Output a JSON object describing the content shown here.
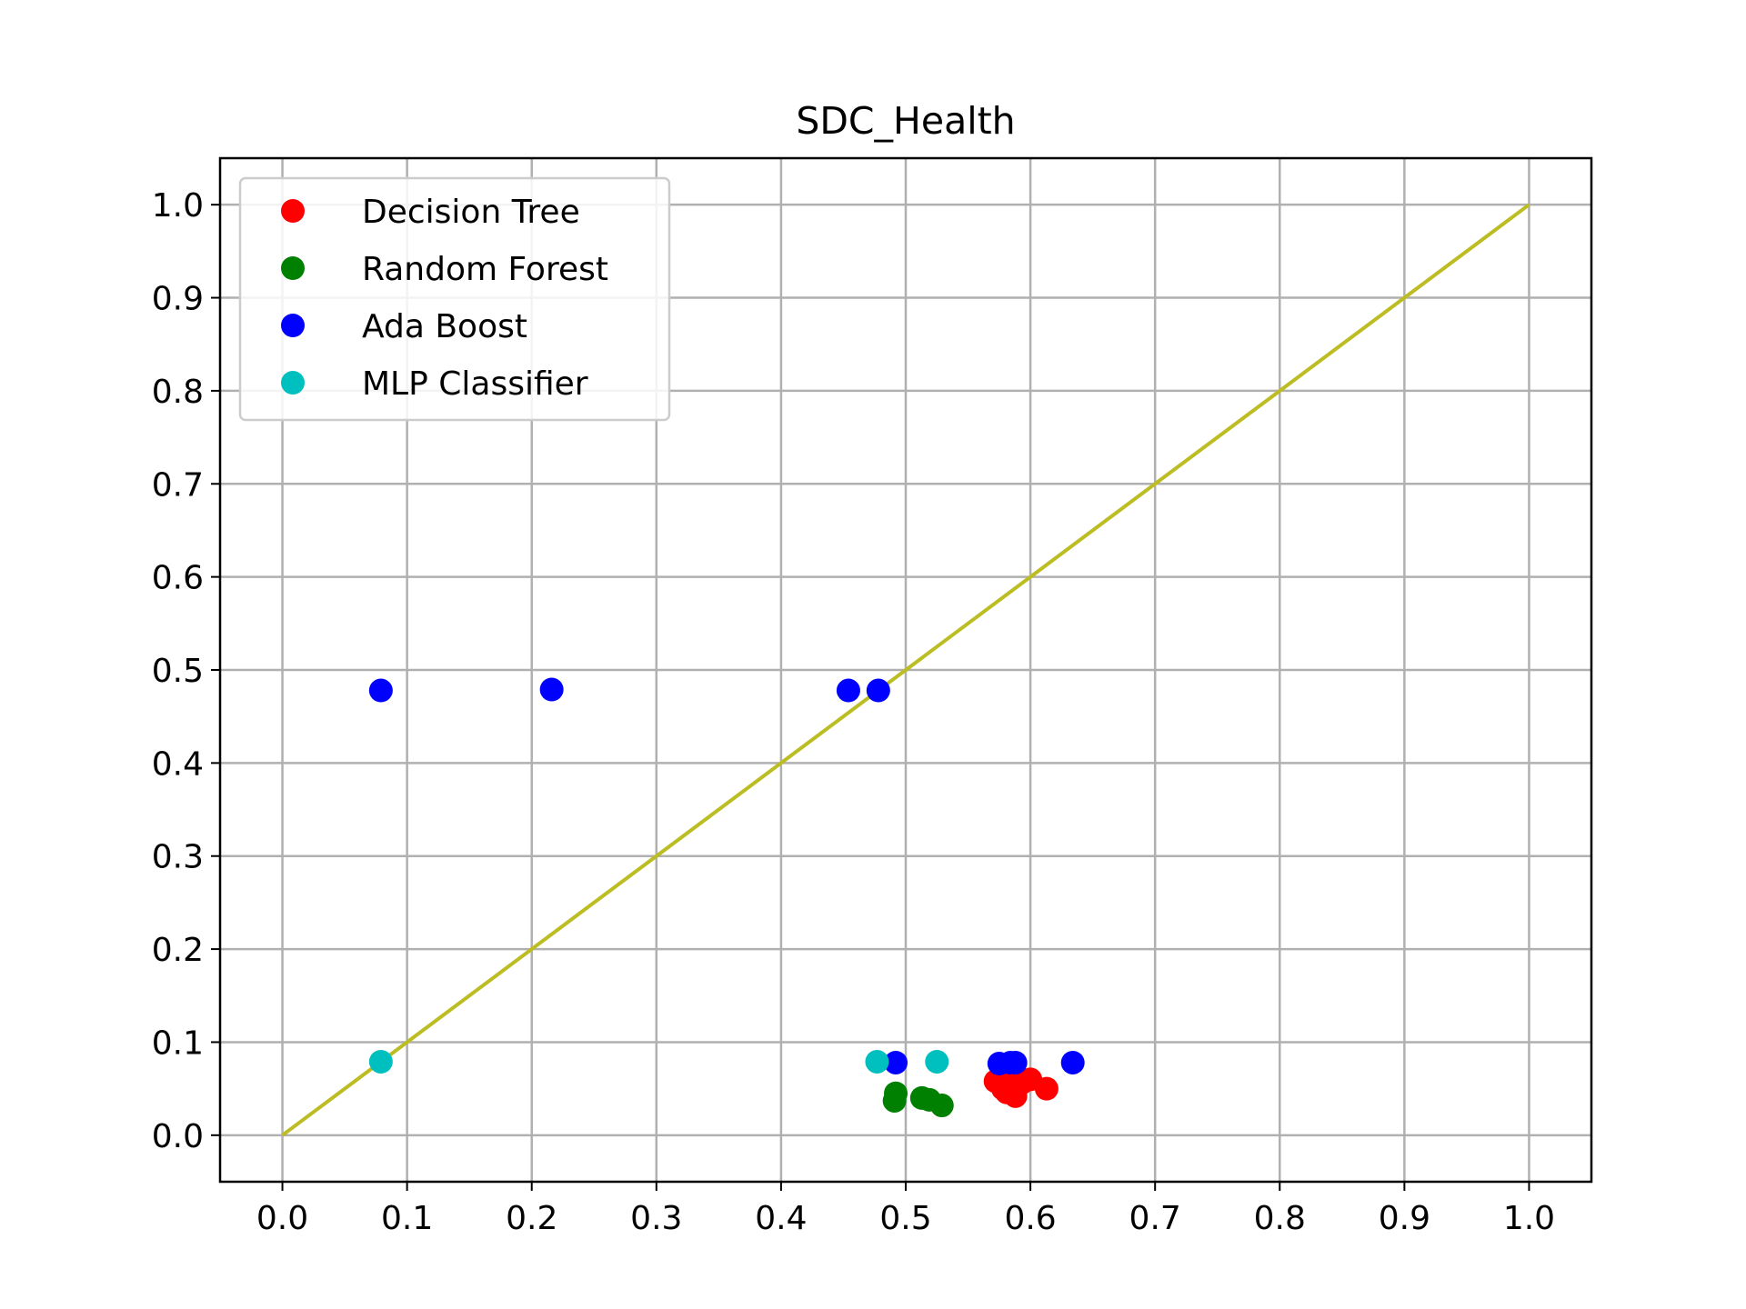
{
  "chart_data": {
    "type": "scatter",
    "title": "SDC_Health",
    "xlabel": "",
    "ylabel": "",
    "xlim": [
      -0.05,
      1.05
    ],
    "ylim": [
      -0.05,
      1.05
    ],
    "xticks": [
      0.0,
      0.1,
      0.2,
      0.3,
      0.4,
      0.5,
      0.6,
      0.7,
      0.8,
      0.9,
      1.0
    ],
    "yticks": [
      0.0,
      0.1,
      0.2,
      0.3,
      0.4,
      0.5,
      0.6,
      0.7,
      0.8,
      0.9,
      1.0
    ],
    "xtick_labels": [
      "0.0",
      "0.1",
      "0.2",
      "0.3",
      "0.4",
      "0.5",
      "0.6",
      "0.7",
      "0.8",
      "0.9",
      "1.0"
    ],
    "ytick_labels": [
      "0.0",
      "0.1",
      "0.2",
      "0.3",
      "0.4",
      "0.5",
      "0.6",
      "0.7",
      "0.8",
      "0.9",
      "1.0"
    ],
    "grid": true,
    "legend": {
      "placement": "upper-left",
      "entries": [
        "Decision Tree",
        "Random Forest",
        "Ada Boost",
        "MLP Classifier"
      ]
    },
    "series": [
      {
        "name": "Decision Tree",
        "color": "#ff0000",
        "x": [
          0.572,
          0.583,
          0.593,
          0.6,
          0.581,
          0.588,
          0.613,
          0.578
        ],
        "y": [
          0.058,
          0.055,
          0.056,
          0.06,
          0.046,
          0.042,
          0.05,
          0.05
        ]
      },
      {
        "name": "Random Forest",
        "color": "#008000",
        "x": [
          0.492,
          0.491,
          0.513,
          0.519,
          0.529
        ],
        "y": [
          0.045,
          0.037,
          0.04,
          0.038,
          0.032
        ]
      },
      {
        "name": "Ada Boost",
        "color": "#0000ff",
        "x": [
          0.079,
          0.216,
          0.454,
          0.478,
          0.492,
          0.575,
          0.584,
          0.588,
          0.634
        ],
        "y": [
          0.478,
          0.479,
          0.478,
          0.478,
          0.078,
          0.077,
          0.078,
          0.078,
          0.078
        ]
      },
      {
        "name": "MLP Classifier",
        "color": "#00bfbf",
        "x": [
          0.079,
          0.477,
          0.525
        ],
        "y": [
          0.079,
          0.079,
          0.079
        ]
      }
    ],
    "reference_line": {
      "color": "#bcbd22",
      "x": [
        0.0,
        1.0
      ],
      "y": [
        0.0,
        1.0
      ]
    }
  }
}
